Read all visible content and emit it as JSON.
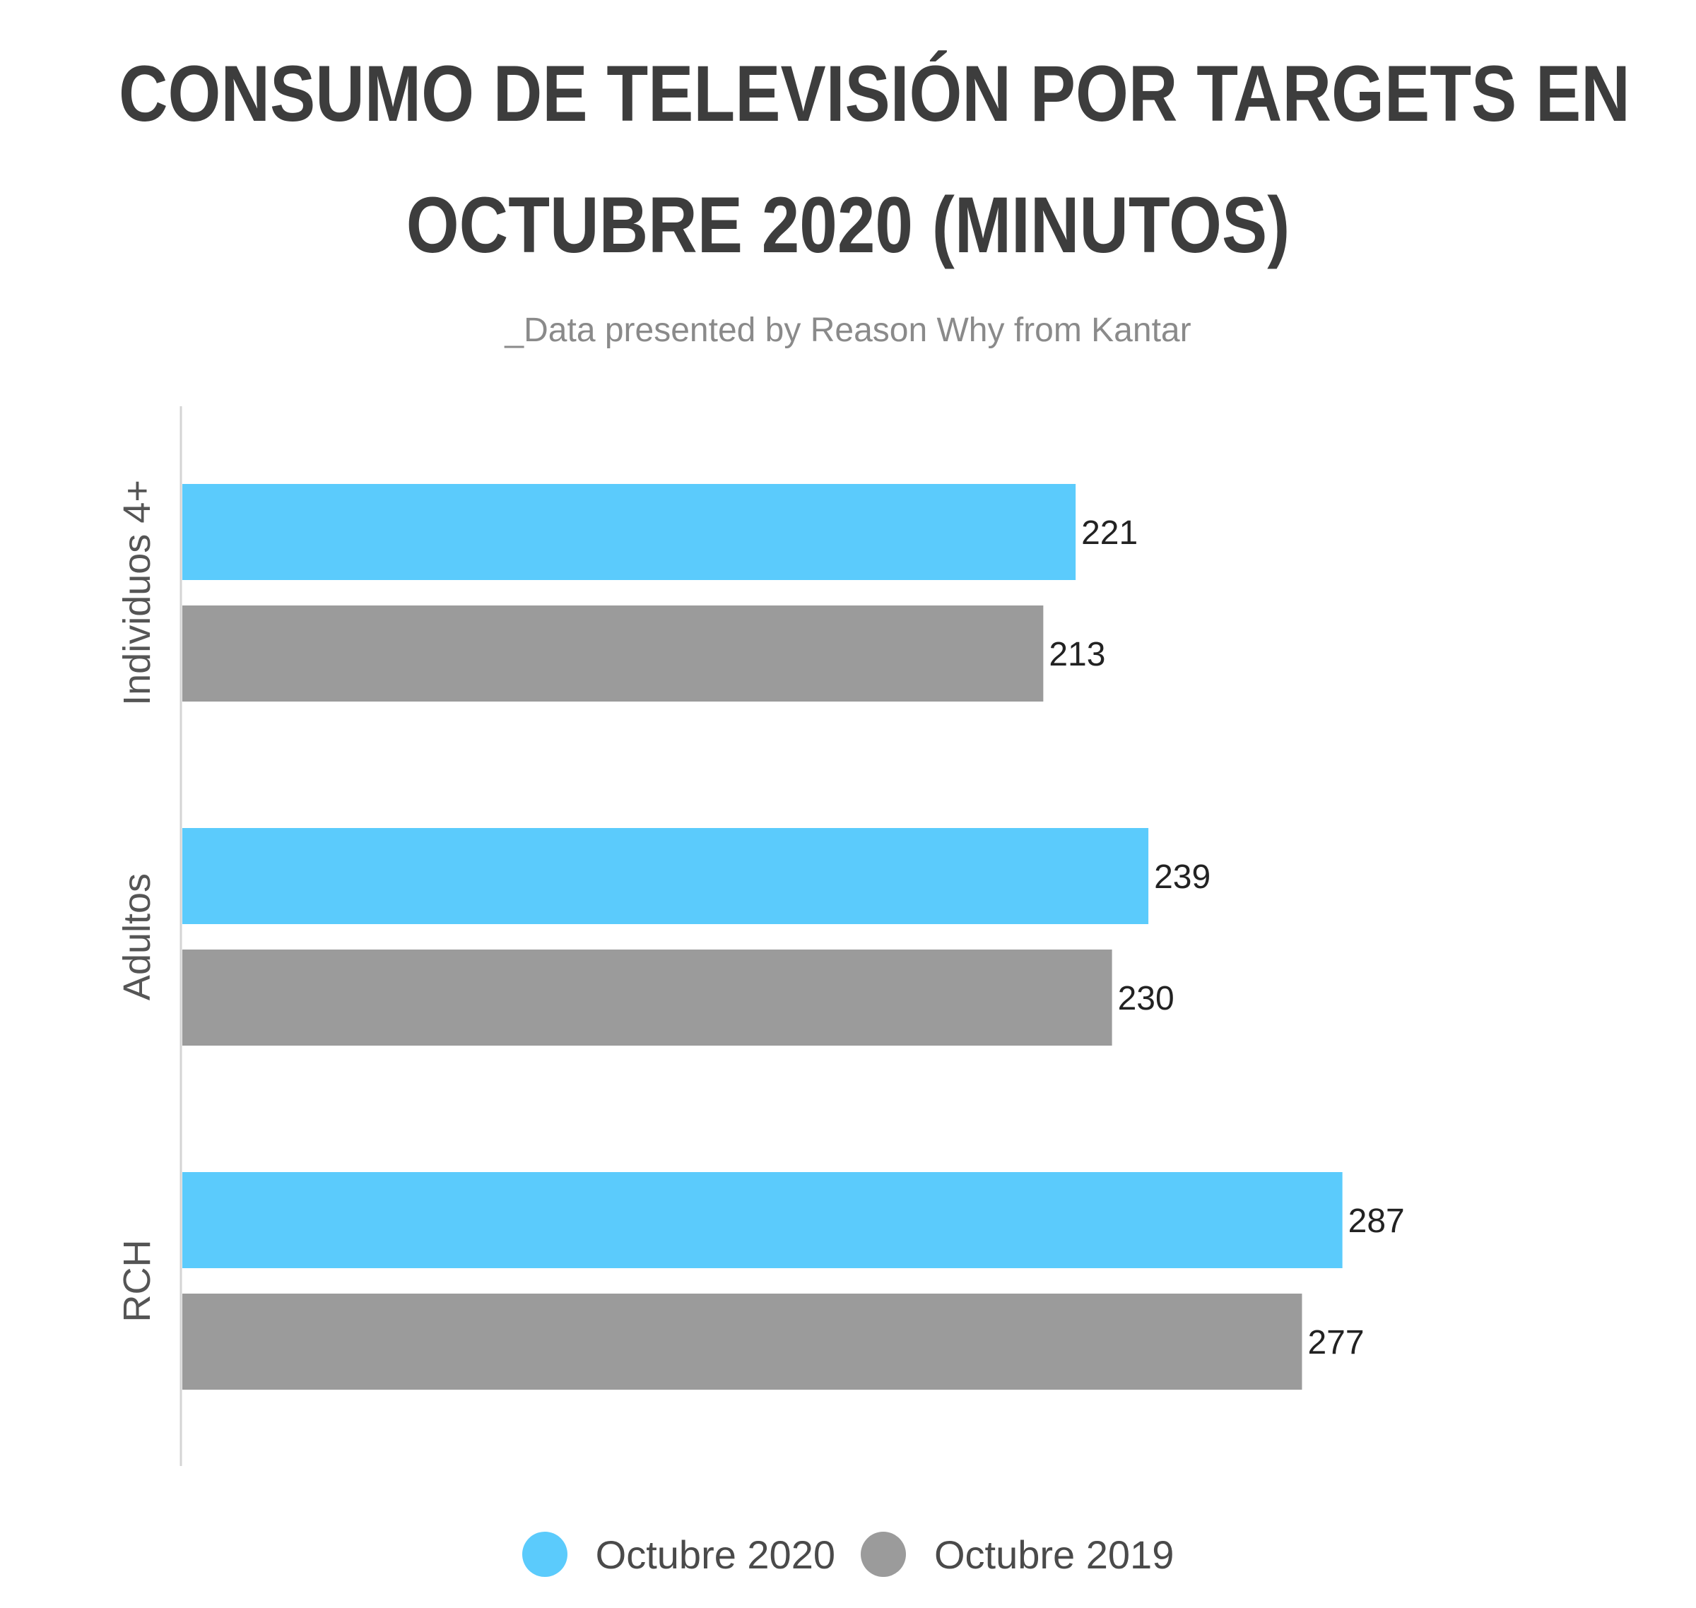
{
  "chart_data": {
    "type": "bar",
    "orientation": "horizontal",
    "title": "CONSUMO DE TELEVISIÓN POR TARGETS EN OCTUBRE 2020 (MINUTOS)",
    "title_lines": [
      "CONSUMO DE TELEVISIÓN POR TARGETS EN",
      "OCTUBRE 2020 (MINUTOS)"
    ],
    "subtitle": "_Data presented by Reason Why from Kantar",
    "categories": [
      "Individuos 4+",
      "Adultos",
      "RCH"
    ],
    "series": [
      {
        "name": "Octubre 2020",
        "color": "#5bcbfc",
        "values": [
          221,
          239,
          287
        ]
      },
      {
        "name": "Octubre 2019",
        "color": "#9b9b9b",
        "values": [
          213,
          230,
          277
        ]
      }
    ],
    "xlim": [
      0,
      300
    ],
    "grid": false,
    "data_labels": true,
    "legend_position": "bottom"
  },
  "colors": {
    "title": "#3d3d3d",
    "subtitle": "#8a8a8a",
    "axis_line": "#d4d4d4",
    "category_label": "#555555",
    "data_label": "#222222"
  }
}
